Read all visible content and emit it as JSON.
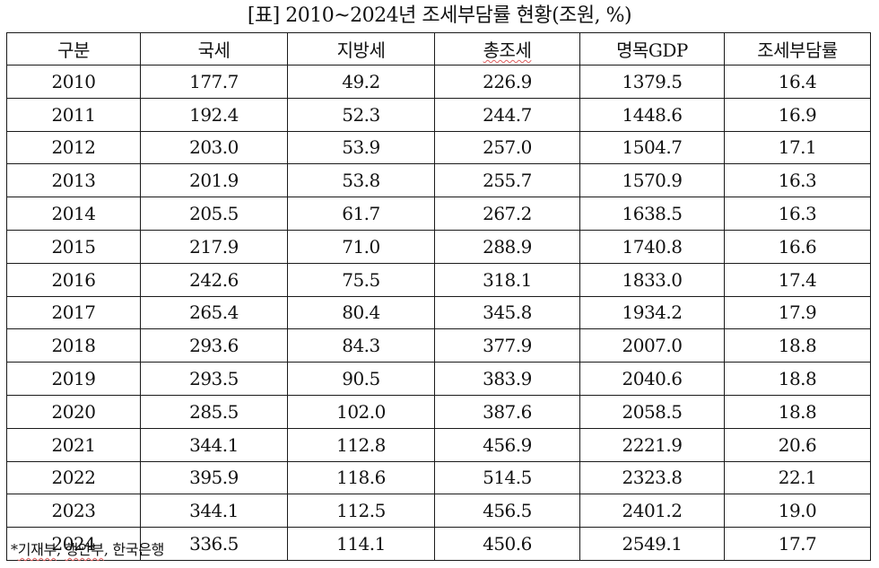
{
  "caption": "[표] 2010~2024년 조세부담률 현황(조원, %)",
  "table": {
    "headers": [
      "구분",
      "국세",
      "지방세",
      "총조세",
      "명목GDP",
      "조세부담률"
    ],
    "rows": [
      [
        "2010",
        "177.7",
        "49.2",
        "226.9",
        "1379.5",
        "16.4"
      ],
      [
        "2011",
        "192.4",
        "52.3",
        "244.7",
        "1448.6",
        "16.9"
      ],
      [
        "2012",
        "203.0",
        "53.9",
        "257.0",
        "1504.7",
        "17.1"
      ],
      [
        "2013",
        "201.9",
        "53.8",
        "255.7",
        "1570.9",
        "16.3"
      ],
      [
        "2014",
        "205.5",
        "61.7",
        "267.2",
        "1638.5",
        "16.3"
      ],
      [
        "2015",
        "217.9",
        "71.0",
        "288.9",
        "1740.8",
        "16.6"
      ],
      [
        "2016",
        "242.6",
        "75.5",
        "318.1",
        "1833.0",
        "17.4"
      ],
      [
        "2017",
        "265.4",
        "80.4",
        "345.8",
        "1934.2",
        "17.9"
      ],
      [
        "2018",
        "293.6",
        "84.3",
        "377.9",
        "2007.0",
        "18.8"
      ],
      [
        "2019",
        "293.5",
        "90.5",
        "383.9",
        "2040.6",
        "18.8"
      ],
      [
        "2020",
        "285.5",
        "102.0",
        "387.6",
        "2058.5",
        "18.8"
      ],
      [
        "2021",
        "344.1",
        "112.8",
        "456.9",
        "2221.9",
        "20.6"
      ],
      [
        "2022",
        "395.9",
        "118.6",
        "514.5",
        "2323.8",
        "22.1"
      ],
      [
        "2023",
        "344.1",
        "112.5",
        "456.5",
        "2401.2",
        "19.0"
      ],
      [
        "2024",
        "336.5",
        "114.1",
        "450.6",
        "2549.1",
        "17.7"
      ]
    ]
  },
  "source": {
    "prefix": "*",
    "items": [
      "기재부",
      "행안부",
      "한국은행"
    ],
    "separator": ", "
  }
}
